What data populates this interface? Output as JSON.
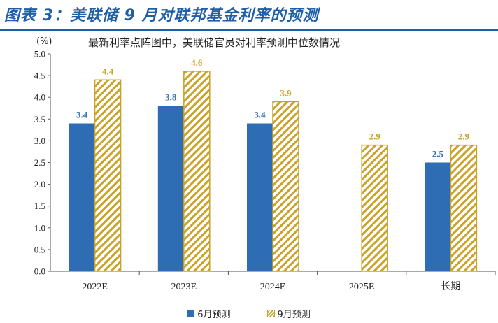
{
  "header": {
    "title": "图表 3：美联储 9 月对联邦基金利率的预测"
  },
  "colors": {
    "june_series": "#2e6db3",
    "september_series": "#c9a227",
    "title": "#1f5fa8",
    "june_label": "#2e6db3",
    "september_label": "#c9a227"
  },
  "chart_data": {
    "type": "bar",
    "title": "",
    "subtitle": "最新利率点阵图中，美联储官员对利率预测中位数情况",
    "unit": "(%)",
    "categories": [
      "2022E",
      "2023E",
      "2024E",
      "2025E",
      "长期"
    ],
    "series": [
      {
        "name": "6月预测",
        "values": [
          3.4,
          3.8,
          3.4,
          null,
          2.5
        ],
        "style": "solid"
      },
      {
        "name": "9月预测",
        "values": [
          4.4,
          4.6,
          3.9,
          2.9,
          2.9
        ],
        "style": "hatched"
      }
    ],
    "ylim": [
      0,
      5.0
    ],
    "yticks": [
      "0.0",
      "0.5",
      "1.0",
      "1.5",
      "2.0",
      "2.5",
      "3.0",
      "3.5",
      "4.0",
      "4.5",
      "5.0"
    ],
    "xlabel": "",
    "ylabel": "",
    "grid": false,
    "legend": "bottom"
  }
}
